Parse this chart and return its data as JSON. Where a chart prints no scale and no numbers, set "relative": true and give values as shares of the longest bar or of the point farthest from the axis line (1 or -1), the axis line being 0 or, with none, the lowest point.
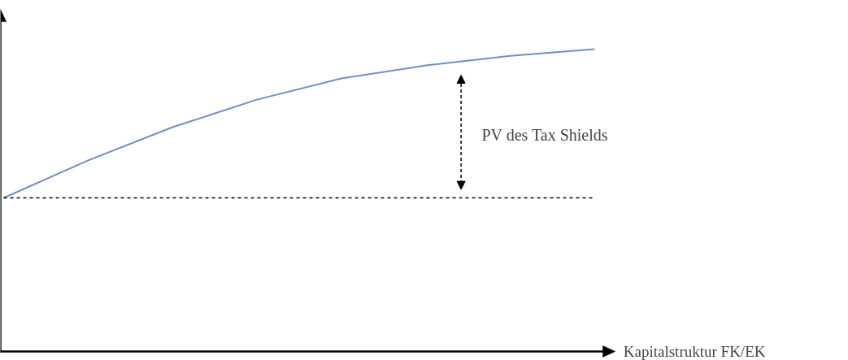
{
  "chart_data": {
    "type": "line",
    "relative": true,
    "xlabel": "Kapitalstruktur FK/EK",
    "categories": [
      null,
      null,
      null,
      null,
      null,
      null,
      null,
      null
    ],
    "series": [
      {
        "color": "#6f8fc6",
        "values": [
          0.508,
          0.632,
          0.742,
          0.833,
          0.903,
          0.946,
          0.978,
          1.0
        ]
      }
    ],
    "ref_lines": [
      {
        "axis": "y",
        "value": 0.508,
        "color": "#000000",
        "line_style": "dashed"
      }
    ],
    "annotations": [
      "PV des Tax Shields"
    ],
    "grid": false,
    "marker": "none",
    "line_style": "solid"
  }
}
